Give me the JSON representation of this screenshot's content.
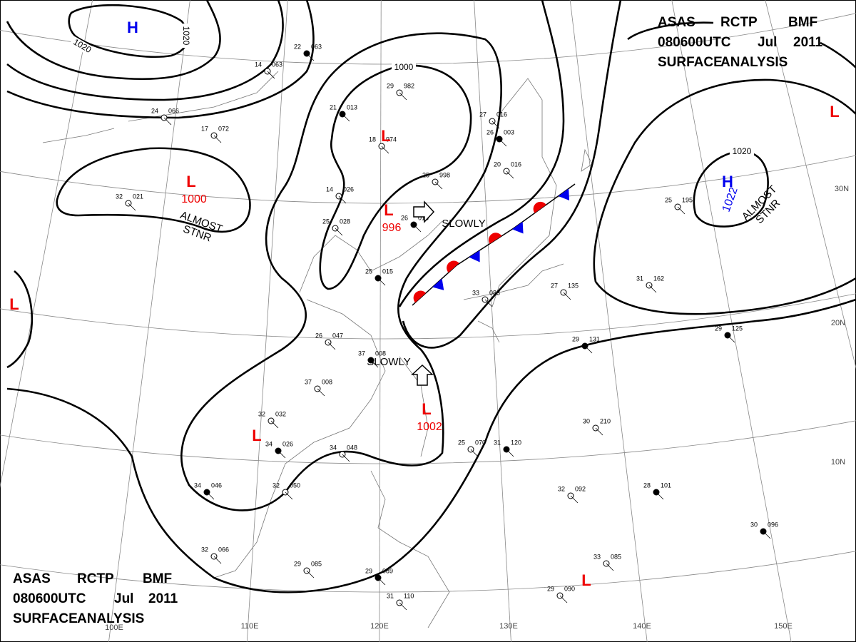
{
  "header": {
    "lines": [
      [
        "ASAS",
        "RCTP",
        "BMF"
      ],
      [
        "080600UTC",
        "Jul",
        "2011"
      ],
      [
        "SURFACE",
        "ANALYSIS"
      ]
    ]
  },
  "pressure_centers": [
    {
      "symbol": "H",
      "color": "#0000ee"
    },
    {
      "symbol": "L",
      "color": "#ee0000",
      "value": "1000"
    },
    {
      "symbol": "L",
      "color": "#ee0000"
    },
    {
      "symbol": "L",
      "color": "#ee0000",
      "value": "996"
    },
    {
      "symbol": "L",
      "color": "#ee0000",
      "value": "1002"
    },
    {
      "symbol": "L",
      "color": "#ee0000"
    },
    {
      "symbol": "L",
      "color": "#ee0000"
    },
    {
      "symbol": "H",
      "color": "#0000ee",
      "value": "1022"
    },
    {
      "symbol": "L",
      "color": "#ee0000"
    },
    {
      "symbol": "L",
      "color": "#ee0000"
    }
  ],
  "annotations": [
    "ALMOST STNR",
    "ALMOST STNR",
    "SLOWLY",
    "SLOWLY"
  ],
  "isobar_labels": [
    "1020",
    "1020",
    "1000",
    "1020"
  ],
  "longitude_labels": [
    "100E",
    "110E",
    "120E",
    "130E",
    "140E",
    "150E"
  ],
  "latitude_labels": [
    "30N",
    "20N",
    "10N"
  ],
  "stations": [
    [
      "22",
      "063"
    ],
    [
      "14",
      "063"
    ],
    [
      "29",
      "982"
    ],
    [
      "21",
      "013"
    ],
    [
      "18",
      "974"
    ],
    [
      "27",
      "016"
    ],
    [
      "26",
      "003"
    ],
    [
      "20",
      "016"
    ],
    [
      "25",
      "998"
    ],
    [
      "26",
      "015"
    ],
    [
      "14",
      "026"
    ],
    [
      "25",
      "028"
    ],
    [
      "25",
      "015"
    ],
    [
      "33",
      "083"
    ],
    [
      "26",
      "047"
    ],
    [
      "37",
      "008"
    ],
    [
      "37",
      "008"
    ],
    [
      "32",
      "032"
    ],
    [
      "34",
      "026"
    ],
    [
      "34",
      "048"
    ],
    [
      "25",
      "070"
    ],
    [
      "31",
      "120"
    ],
    [
      "17",
      "072"
    ],
    [
      "32",
      "021"
    ],
    [
      "28",
      "101"
    ],
    [
      "30",
      "210"
    ],
    [
      "32",
      "092"
    ],
    [
      "30",
      "096"
    ],
    [
      "33",
      "085"
    ],
    [
      "29",
      "090"
    ],
    [
      "29",
      "125"
    ],
    [
      "31",
      "162"
    ],
    [
      "25",
      "195"
    ],
    [
      "29",
      "131"
    ],
    [
      "27",
      "135"
    ],
    [
      "32",
      "066"
    ],
    [
      "34",
      "046"
    ],
    [
      "32",
      "050"
    ],
    [
      "29",
      "085"
    ],
    [
      "29",
      "089"
    ],
    [
      "31",
      "110"
    ],
    [
      "24",
      "066"
    ]
  ]
}
